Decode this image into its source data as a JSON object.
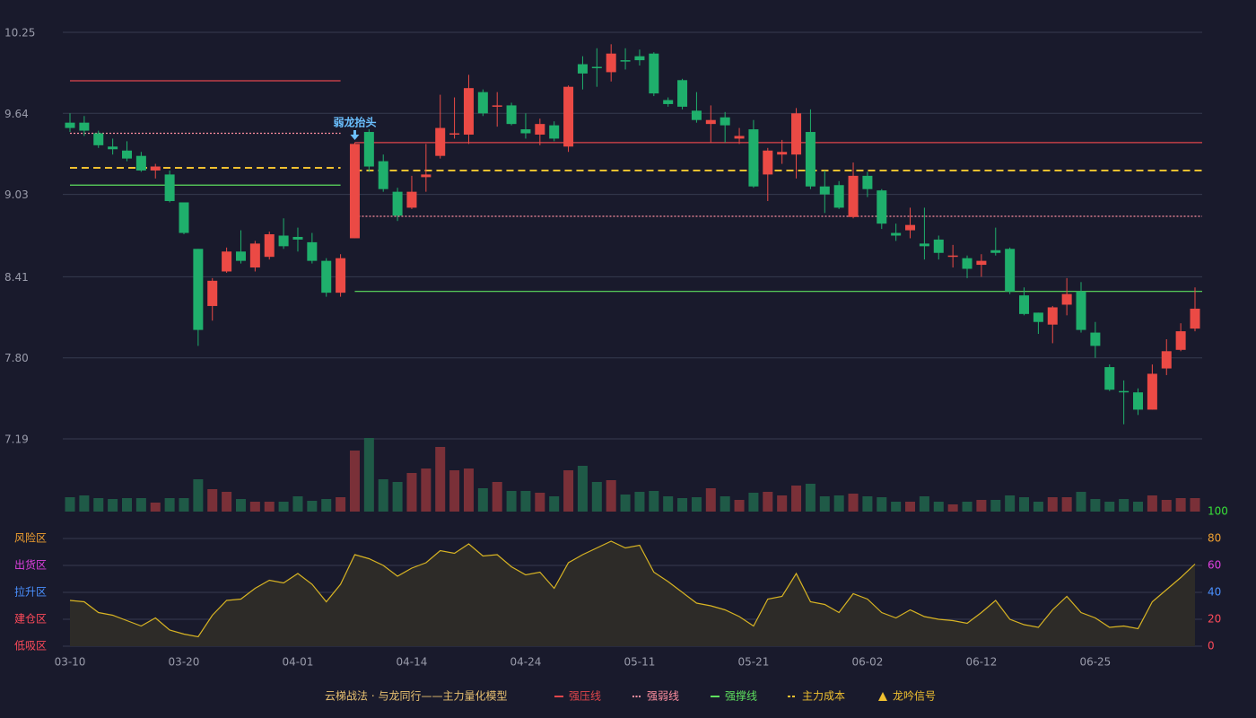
{
  "chart_data": {
    "type": "candlestick",
    "categories": [
      "03-10",
      null,
      null,
      null,
      null,
      null,
      null,
      null,
      "03-20",
      null,
      null,
      null,
      null,
      null,
      null,
      null,
      "04-01",
      null,
      null,
      null,
      null,
      null,
      null,
      null,
      "04-14",
      null,
      null,
      null,
      null,
      null,
      null,
      null,
      "04-24",
      null,
      null,
      null,
      null,
      null,
      null,
      null,
      "05-11",
      null,
      null,
      null,
      null,
      null,
      null,
      null,
      "05-21",
      null,
      null,
      null,
      null,
      null,
      null,
      null,
      "06-02",
      null,
      null,
      null,
      null,
      null,
      null,
      null,
      "06-12",
      null,
      null,
      null,
      null,
      null,
      null,
      null,
      "06-25",
      null,
      null,
      null,
      null,
      null,
      null,
      null
    ],
    "open": [
      9.57,
      9.57,
      9.49,
      9.39,
      9.36,
      9.32,
      9.21,
      9.18,
      8.97,
      8.62,
      8.19,
      8.45,
      8.6,
      8.48,
      8.56,
      8.72,
      8.71,
      8.67,
      8.53,
      8.29,
      8.7,
      9.5,
      9.28,
      9.05,
      8.93,
      9.16,
      9.32,
      9.48,
      9.48,
      9.8,
      9.69,
      9.7,
      9.52,
      9.48,
      9.55,
      9.39,
      10.01,
      9.99,
      9.95,
      10.04,
      10.07,
      10.09,
      9.74,
      9.89,
      9.66,
      9.56,
      9.61,
      9.45,
      9.52,
      9.18,
      9.33,
      9.33,
      9.5,
      9.09,
      9.1,
      8.86,
      9.17,
      9.06,
      8.74,
      8.76,
      8.66,
      8.69,
      8.56,
      8.55,
      8.5,
      8.61,
      8.62,
      8.27,
      8.14,
      8.05,
      8.2,
      8.3,
      7.99,
      7.73,
      7.55,
      7.54,
      7.41,
      7.72,
      7.86,
      8.02
    ],
    "high": [
      9.64,
      9.62,
      9.51,
      9.45,
      9.43,
      9.35,
      9.26,
      9.21,
      8.97,
      8.62,
      8.4,
      8.63,
      8.76,
      8.68,
      8.75,
      8.85,
      8.78,
      8.74,
      8.55,
      8.58,
      9.42,
      9.52,
      9.33,
      9.08,
      9.17,
      9.41,
      9.78,
      9.76,
      9.93,
      9.82,
      9.8,
      9.72,
      9.64,
      9.6,
      9.58,
      9.85,
      10.07,
      10.13,
      10.16,
      10.13,
      10.12,
      10.1,
      9.76,
      9.9,
      9.8,
      9.7,
      9.65,
      9.53,
      9.59,
      9.38,
      9.44,
      9.68,
      9.67,
      9.21,
      9.13,
      9.27,
      9.2,
      9.07,
      8.81,
      8.93,
      8.93,
      8.72,
      8.65,
      8.57,
      8.58,
      8.78,
      8.63,
      8.33,
      8.14,
      8.19,
      8.4,
      8.37,
      8.07,
      7.75,
      7.63,
      7.57,
      7.75,
      7.94,
      8.06,
      8.33
    ],
    "low": [
      9.5,
      9.47,
      9.38,
      9.33,
      9.28,
      9.2,
      9.15,
      8.97,
      8.73,
      7.89,
      8.08,
      8.44,
      8.51,
      8.45,
      8.54,
      8.62,
      8.6,
      8.51,
      8.26,
      8.26,
      8.7,
      9.2,
      9.05,
      8.83,
      8.92,
      9.05,
      9.3,
      9.45,
      9.41,
      9.62,
      9.54,
      9.55,
      9.45,
      9.4,
      9.43,
      9.35,
      9.82,
      9.84,
      9.88,
      9.97,
      10.0,
      9.77,
      9.69,
      9.67,
      9.57,
      9.42,
      9.42,
      9.41,
      9.08,
      8.98,
      9.26,
      9.15,
      9.07,
      8.89,
      8.92,
      8.85,
      9.01,
      8.77,
      8.68,
      8.7,
      8.54,
      8.54,
      8.48,
      8.4,
      8.41,
      8.57,
      8.28,
      8.12,
      7.98,
      7.91,
      8.12,
      7.99,
      7.8,
      7.55,
      7.3,
      7.37,
      7.41,
      7.67,
      7.85,
      8.0
    ],
    "close": [
      9.53,
      9.51,
      9.4,
      9.37,
      9.3,
      9.21,
      9.24,
      8.98,
      8.74,
      8.01,
      8.38,
      8.6,
      8.53,
      8.66,
      8.73,
      8.64,
      8.69,
      8.53,
      8.29,
      8.55,
      9.41,
      9.24,
      9.07,
      8.87,
      9.05,
      9.18,
      9.53,
      9.49,
      9.83,
      9.64,
      9.7,
      9.56,
      9.49,
      9.56,
      9.45,
      9.84,
      9.94,
      9.98,
      10.09,
      10.03,
      10.04,
      9.79,
      9.71,
      9.69,
      9.59,
      9.59,
      9.55,
      9.47,
      9.09,
      9.36,
      9.35,
      9.64,
      9.09,
      9.03,
      8.93,
      9.17,
      9.07,
      8.81,
      8.72,
      8.8,
      8.64,
      8.59,
      8.57,
      8.47,
      8.53,
      8.59,
      8.3,
      8.13,
      8.07,
      8.18,
      8.28,
      8.01,
      7.89,
      7.56,
      7.54,
      7.41,
      7.68,
      7.85,
      8.0,
      8.17
    ],
    "volume": [
      16,
      18,
      15,
      14,
      15,
      15,
      10,
      15,
      15,
      36,
      25,
      22,
      14,
      11,
      11,
      11,
      17,
      12,
      14,
      16,
      68,
      82,
      36,
      33,
      43,
      48,
      72,
      46,
      48,
      26,
      33,
      23,
      23,
      21,
      17,
      46,
      51,
      33,
      35,
      19,
      22,
      23,
      17,
      15,
      16,
      26,
      17,
      13,
      21,
      22,
      18,
      29,
      31,
      17,
      18,
      20,
      17,
      16,
      11,
      11,
      17,
      11,
      8,
      11,
      13,
      13,
      18,
      16,
      11,
      16,
      16,
      22,
      14,
      11,
      14,
      11,
      18,
      13,
      15,
      15
    ],
    "up_color": "#eb4a45",
    "down_color": "#1faf6c",
    "volume_up_color": "#7a3038",
    "volume_down_color": "#1f5a47",
    "ylim": [
      7.19,
      10.25
    ],
    "yticks": [
      10.25,
      9.64,
      9.03,
      8.41,
      {
        "value": 7.8,
        "label": "7.80"
      },
      7.19
    ],
    "grid": true,
    "levels": [
      {
        "name": "强压线",
        "color": "#e0464b",
        "style": "solid",
        "segments": [
          {
            "from": 0,
            "to": 19,
            "value": 9.885
          },
          {
            "from": 20,
            "to": 79,
            "value": 9.42
          }
        ]
      },
      {
        "name": "强弱线",
        "color": "#ff8fa0",
        "style": "dotted",
        "segments": [
          {
            "from": 0,
            "to": 19,
            "value": 9.49
          },
          {
            "from": 20,
            "to": 79,
            "value": 8.865
          }
        ]
      },
      {
        "name": "强撑线",
        "color": "#5ee05e",
        "style": "solid",
        "segments": [
          {
            "from": 0,
            "to": 19,
            "value": 9.1
          },
          {
            "from": 20,
            "to": 79,
            "value": 8.3
          }
        ]
      },
      {
        "name": "主力成本",
        "color": "#f0c030",
        "style": "dashed",
        "segments": [
          {
            "from": 0,
            "to": 19,
            "value": 9.23
          },
          {
            "from": 20,
            "to": 79,
            "value": 9.21
          }
        ]
      }
    ],
    "legend_title": "云梯战法 · 与龙同行——主力量化模型",
    "signal": {
      "name": "龙吟信号",
      "color": "#f0c030"
    },
    "annotations": [
      {
        "index": 20,
        "text": "弱龙抬头",
        "color": "#6bc0ff"
      }
    ],
    "indicator": {
      "values": [
        34,
        33,
        25,
        23,
        19,
        15,
        21,
        12,
        9,
        7,
        23,
        34,
        35,
        43,
        49,
        47,
        54,
        46,
        33,
        46,
        68,
        65,
        60,
        52,
        58,
        62,
        71,
        69,
        76,
        67,
        68,
        59,
        53,
        55,
        43,
        62,
        68,
        73,
        78,
        73,
        75,
        55,
        48,
        40,
        32,
        30,
        27,
        22,
        15,
        35,
        37,
        54,
        33,
        31,
        25,
        39,
        35,
        25,
        21,
        27,
        22,
        20,
        19,
        17,
        25,
        34,
        20,
        16,
        14,
        27,
        37,
        25,
        21,
        14,
        15,
        13,
        33,
        42,
        51,
        61
      ],
      "color": "#d8b423",
      "fill": "#2d2b28",
      "ylim": [
        0,
        100
      ],
      "yticks": [
        0,
        20,
        40,
        60,
        80,
        100
      ],
      "tick_colors": [
        "#ff4a5a",
        "#ff4a5a",
        "#4a90ff",
        "#e040e0",
        "#f0a030",
        "#38e038"
      ],
      "zones": [
        {
          "value": 80,
          "label": "风险区",
          "color": "#f0a030"
        },
        {
          "value": 60,
          "label": "出货区",
          "color": "#e040e0"
        },
        {
          "value": 40,
          "label": "拉升区",
          "color": "#4a90ff"
        },
        {
          "value": 20,
          "label": "建仓区",
          "color": "#ff4a5a"
        },
        {
          "value": 0,
          "label": "低吸区",
          "color": "#ff4a5a"
        }
      ]
    }
  }
}
